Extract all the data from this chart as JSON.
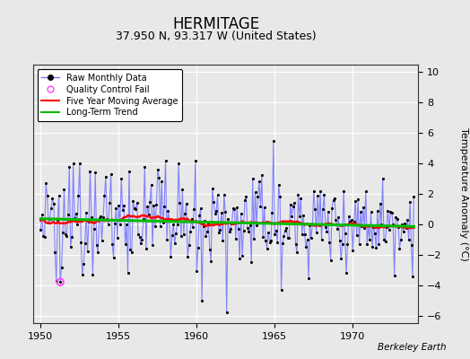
{
  "title": "HERMITAGE",
  "subtitle": "37.950 N, 93.317 W (United States)",
  "ylabel": "Temperature Anomaly (°C)",
  "credit": "Berkeley Earth",
  "xlim": [
    1949.5,
    1974.2
  ],
  "ylim": [
    -6.5,
    10.5
  ],
  "yticks": [
    -6,
    -4,
    -2,
    0,
    2,
    4,
    6,
    8,
    10
  ],
  "xticks": [
    1950,
    1955,
    1960,
    1965,
    1970
  ],
  "bg_color": "#e8e8e8",
  "plot_bg_color": "#e8e8e8",
  "raw_line_color": "#7777ff",
  "raw_dot_color": "#000000",
  "moving_avg_color": "#ff0000",
  "trend_color": "#00bb00",
  "qc_color": "#ff44ff",
  "grid_color": "#ffffff",
  "title_fontsize": 12,
  "subtitle_fontsize": 9,
  "tick_fontsize": 8,
  "ylabel_fontsize": 8
}
